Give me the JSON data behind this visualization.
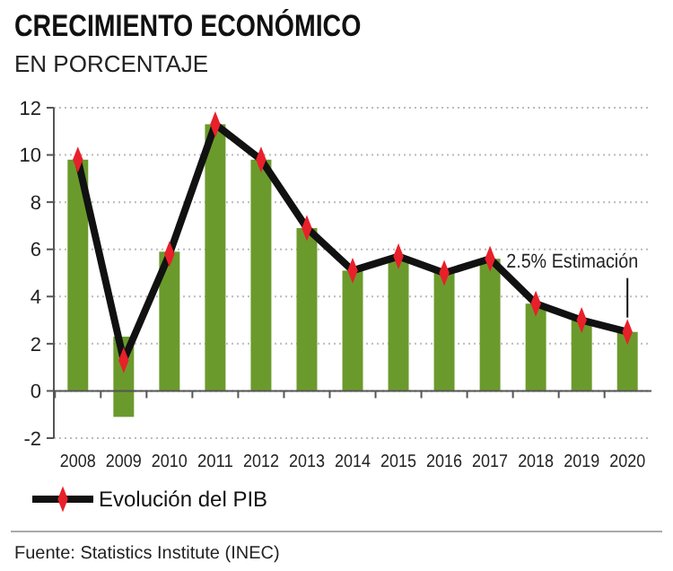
{
  "chart_data": {
    "type": "bar",
    "title": "CRECIMIENTO ECONÓMICO",
    "subtitle": "EN PORCENTAJE",
    "categories": [
      "2008",
      "2009",
      "2010",
      "2011",
      "2012",
      "2013",
      "2014",
      "2015",
      "2016",
      "2017",
      "2018",
      "2019",
      "2020"
    ],
    "series": [
      {
        "color": "#6b9a2c",
        "values": [
          9.8,
          3.4,
          5.9,
          11.3,
          9.8,
          6.9,
          5.1,
          5.7,
          5.0,
          5.6,
          3.7,
          3.0,
          2.5
        ],
        "base": [
          0,
          -1.1,
          0,
          0,
          0,
          0,
          0,
          0,
          0,
          0,
          0,
          0,
          0
        ]
      },
      {
        "type": "line",
        "name": "Evolución del PIB",
        "color": "#111111",
        "marker": "diamond",
        "values": [
          9.8,
          1.3,
          5.8,
          11.3,
          9.8,
          6.9,
          5.1,
          5.7,
          5.0,
          5.6,
          3.7,
          3.0,
          2.5
        ]
      }
    ],
    "ylim": [
      -2,
      12
    ],
    "yticks": [
      -2,
      0,
      2,
      4,
      6,
      8,
      10,
      12
    ],
    "grid": "y",
    "legend": "bottom left",
    "annotations": [
      {
        "text": "2.5% Estimación",
        "x": "2020",
        "y": 2.5
      },
      "Fuente: Statistics Institute (INEC)"
    ]
  }
}
